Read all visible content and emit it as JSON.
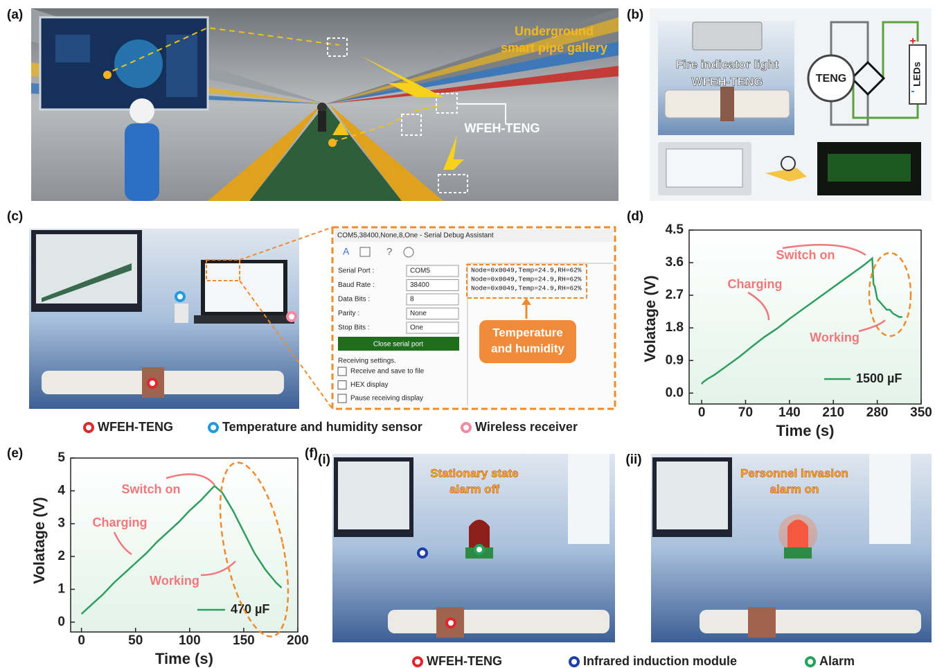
{
  "panel_labels": [
    "(a)",
    "(b)",
    "(c)",
    "(d)",
    "(e)",
    "(f)"
  ],
  "panel_a": {
    "title": [
      "Underground",
      "smart pipe gallery"
    ],
    "device": "WFEH-TENG"
  },
  "panel_b": {
    "photo_labels": [
      "Fire indicator light",
      "WFEH-TENG"
    ],
    "circuit": {
      "source": "TENG",
      "load": "LEDs",
      "plus": "+",
      "minus": "-"
    }
  },
  "panel_c": {
    "window": {
      "title": "COM5,38400,None,8,One - Serial Debug Assistant",
      "fields": [
        [
          "Serial Port :",
          "COM5"
        ],
        [
          "Baud Rate :",
          "38400"
        ],
        [
          "Data Bits :",
          "8"
        ],
        [
          "Parity :",
          "None"
        ],
        [
          "Stop Bits :",
          "One"
        ]
      ],
      "button": "Close serial port",
      "receiving": "Receiving settings.",
      "options": [
        "Receive and save to file",
        "HEX display",
        "Pause receiving display"
      ],
      "output": [
        "Node=0x0049,Temp=24.9,RH=62%",
        "Node=0x0049,Temp=24.9,RH=62%",
        "Node=0x0049,Temp=24.9,RH=62%"
      ]
    },
    "callout": [
      "Temperature",
      "and humidity"
    ],
    "legend": [
      "WFEH-TENG",
      "Temperature and humidity sensor",
      "Wireless receiver"
    ]
  },
  "panel_f": {
    "sub_labels": [
      "(i)",
      "(ii)"
    ],
    "captions": [
      [
        "Stationary state",
        "alarm off"
      ],
      [
        "Personnel invasion",
        "alarm on"
      ]
    ],
    "legend": [
      "WFEH-TENG",
      "Infrared induction module",
      "Alarm"
    ]
  },
  "chart_data": [
    {
      "type": "line",
      "x_label": "Time (s)",
      "y_label": "Volatage (V)",
      "xlim": [
        -20,
        350
      ],
      "ylim": [
        -0.3,
        4.5
      ],
      "xticks": [
        0,
        70,
        140,
        210,
        280,
        350
      ],
      "yticks": [
        {
          "value": 0,
          "label": "0.0"
        },
        0.9,
        1.8,
        2.7,
        3.6,
        4.5
      ],
      "annotations": [
        "Switch on",
        "Charging",
        "Working"
      ],
      "x": [
        0,
        2,
        10,
        20,
        40,
        60,
        80,
        100,
        120,
        140,
        160,
        180,
        200,
        220,
        240,
        260,
        272,
        274,
        276,
        280,
        285,
        290,
        295,
        300,
        305,
        310,
        315,
        320
      ],
      "series": [
        {
          "name": "1500 µF",
          "color": "#2e9e5c",
          "values": [
            0.25,
            0.3,
            0.4,
            0.5,
            0.75,
            1.0,
            1.28,
            1.55,
            1.78,
            2.05,
            2.3,
            2.55,
            2.8,
            3.05,
            3.3,
            3.55,
            3.72,
            3.0,
            2.95,
            2.6,
            2.5,
            2.4,
            2.3,
            2.3,
            2.2,
            2.15,
            2.1,
            2.1
          ]
        }
      ]
    },
    {
      "type": "line",
      "x_label": "Time (s)",
      "y_label": "Volatage (V)",
      "xlim": [
        -10,
        200
      ],
      "ylim": [
        -0.3,
        5
      ],
      "xticks": [
        0,
        50,
        100,
        150,
        200
      ],
      "yticks": [
        0,
        1,
        2,
        3,
        4,
        5
      ],
      "annotations": [
        "Switch on",
        "Charging",
        "Working"
      ],
      "x": [
        0,
        10,
        20,
        30,
        40,
        50,
        60,
        70,
        80,
        90,
        100,
        110,
        120,
        123,
        130,
        140,
        150,
        160,
        170,
        180,
        185
      ],
      "series": [
        {
          "name": "470 µF",
          "color": "#2e9e5c",
          "values": [
            0.25,
            0.55,
            0.85,
            1.2,
            1.5,
            1.8,
            2.1,
            2.45,
            2.75,
            3.05,
            3.4,
            3.7,
            4.05,
            4.15,
            3.95,
            3.4,
            2.75,
            2.1,
            1.6,
            1.2,
            1.05
          ]
        }
      ]
    }
  ]
}
